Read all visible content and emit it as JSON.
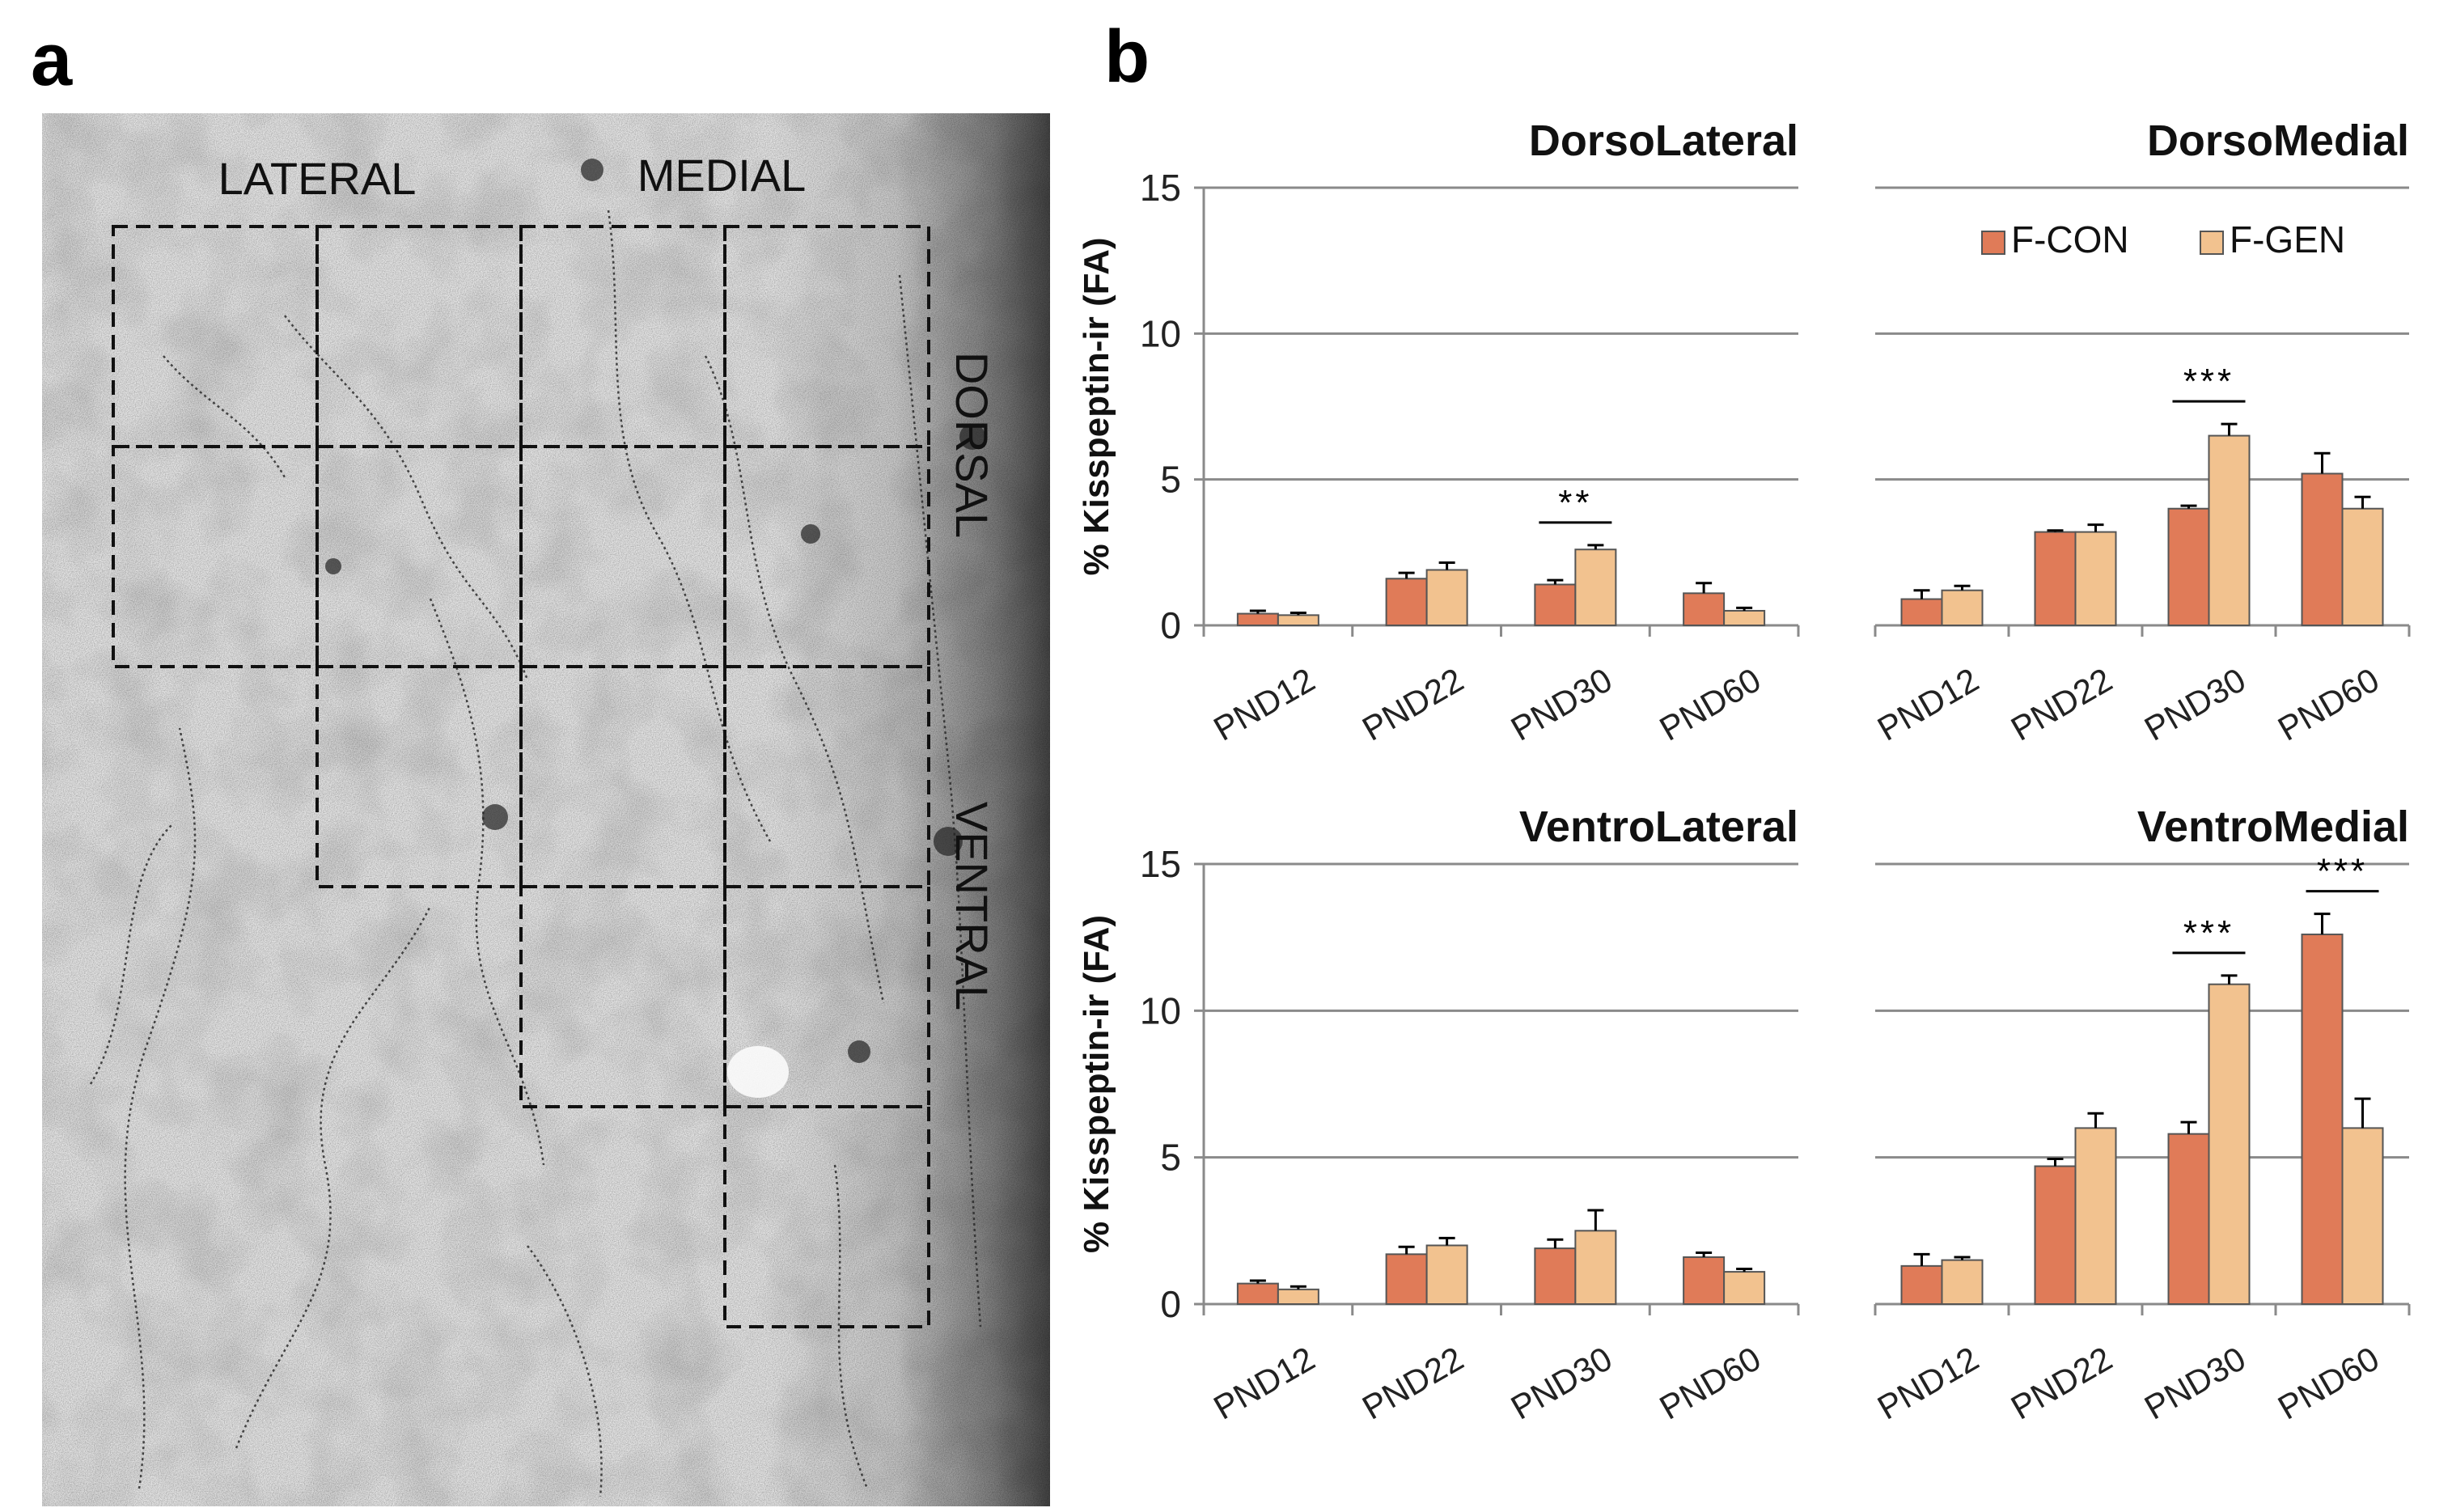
{
  "figure": {
    "panel_a_letter": "a",
    "panel_b_letter": "b"
  },
  "micrograph": {
    "labels": {
      "lateral": "LATERAL",
      "medial": "MEDIAL",
      "dorsal": "DORSAL",
      "ventral": "VENTRAL"
    }
  },
  "colors": {
    "f_con": "#E07B58",
    "f_gen": "#F2C28F",
    "grid": "#8a8a8a"
  },
  "chart_data": [
    {
      "type": "bar",
      "title": "DorsoLateral",
      "ylabel": "% Kisspeptin-ir (FA)",
      "ylim": [
        0,
        15
      ],
      "yticks": [
        0,
        5,
        10,
        15
      ],
      "categories": [
        "PND12",
        "PND22",
        "PND30",
        "PND60"
      ],
      "series": [
        {
          "name": "F-CON",
          "values": [
            0.4,
            1.6,
            1.4,
            1.1
          ],
          "errors": [
            0.1,
            0.2,
            0.15,
            0.35
          ]
        },
        {
          "name": "F-GEN",
          "values": [
            0.35,
            1.9,
            2.6,
            0.5
          ],
          "errors": [
            0.08,
            0.25,
            0.15,
            0.1
          ]
        }
      ],
      "significance": [
        {
          "category": "PND30",
          "label": "**"
        }
      ]
    },
    {
      "type": "bar",
      "title": "DorsoMedial",
      "ylabel": "",
      "ylim": [
        0,
        15
      ],
      "yticks": [
        0,
        5,
        10,
        15
      ],
      "categories": [
        "PND12",
        "PND22",
        "PND30",
        "PND60"
      ],
      "series": [
        {
          "name": "F-CON",
          "values": [
            0.9,
            3.2,
            4.0,
            5.2
          ],
          "errors": [
            0.3,
            0.05,
            0.1,
            0.7
          ]
        },
        {
          "name": "F-GEN",
          "values": [
            1.2,
            3.2,
            6.5,
            4.0
          ],
          "errors": [
            0.15,
            0.25,
            0.4,
            0.4
          ]
        }
      ],
      "significance": [
        {
          "category": "PND30",
          "label": "***"
        }
      ],
      "legend": {
        "position": "top-right",
        "entries": [
          "F-CON",
          "F-GEN"
        ]
      }
    },
    {
      "type": "bar",
      "title": "VentroLateral",
      "ylabel": "% Kisspeptin-ir (FA)",
      "ylim": [
        0,
        15
      ],
      "yticks": [
        0,
        5,
        10,
        15
      ],
      "categories": [
        "PND12",
        "PND22",
        "PND30",
        "PND60"
      ],
      "series": [
        {
          "name": "F-CON",
          "values": [
            0.7,
            1.7,
            1.9,
            1.6
          ],
          "errors": [
            0.1,
            0.25,
            0.3,
            0.15
          ]
        },
        {
          "name": "F-GEN",
          "values": [
            0.5,
            2.0,
            2.5,
            1.1
          ],
          "errors": [
            0.1,
            0.25,
            0.7,
            0.1
          ]
        }
      ],
      "significance": []
    },
    {
      "type": "bar",
      "title": "VentroMedial",
      "ylabel": "",
      "ylim": [
        0,
        15
      ],
      "yticks": [
        0,
        5,
        10,
        15
      ],
      "categories": [
        "PND12",
        "PND22",
        "PND30",
        "PND60"
      ],
      "series": [
        {
          "name": "F-CON",
          "values": [
            1.3,
            4.7,
            5.8,
            12.6
          ],
          "errors": [
            0.4,
            0.25,
            0.4,
            0.7
          ]
        },
        {
          "name": "F-GEN",
          "values": [
            1.5,
            6.0,
            10.9,
            6.0
          ],
          "errors": [
            0.1,
            0.5,
            0.3,
            1.0
          ]
        }
      ],
      "significance": [
        {
          "category": "PND30",
          "label": "***"
        },
        {
          "category": "PND60",
          "label": "***"
        }
      ]
    }
  ]
}
